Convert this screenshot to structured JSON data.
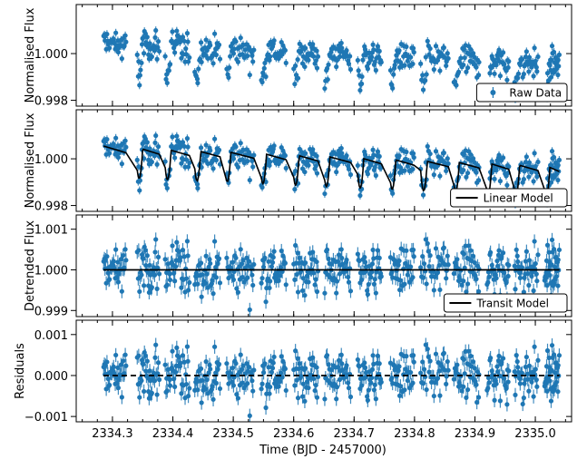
{
  "figure": {
    "xlabel": "Time (BJD - 2457000)"
  },
  "colors": {
    "points": "#1f77b4",
    "model": "#000000",
    "legend_border": "#000000"
  },
  "chart_data": [
    {
      "type": "scatter",
      "panel": "raw",
      "ylabel": "Normalised Flux",
      "xlim": [
        2334.24,
        2335.06
      ],
      "ylim": [
        0.99775,
        1.0021
      ],
      "yticks": [
        0.998,
        1.0
      ],
      "ytick_labels": [
        "0.998",
        "1.000"
      ],
      "legend": {
        "label": "Raw Data",
        "placement": "lower-right",
        "marker": "errorbar-point"
      },
      "series": [
        {
          "name": "Raw Data",
          "style": "errorbar-points"
        }
      ]
    },
    {
      "type": "line",
      "panel": "linear",
      "ylabel": "Normalised Flux",
      "xlim": [
        2334.24,
        2335.06
      ],
      "ylim": [
        0.99775,
        1.0021
      ],
      "yticks": [
        0.998,
        1.0
      ],
      "ytick_labels": [
        "0.998",
        "1.000"
      ],
      "legend": {
        "label": "Linear Model",
        "placement": "lower-right",
        "marker": "line"
      },
      "series": [
        {
          "name": "Linear Model",
          "style": "line"
        }
      ]
    },
    {
      "type": "line",
      "panel": "transit",
      "ylabel": "Detrended Flux",
      "xlim": [
        2334.24,
        2335.06
      ],
      "ylim": [
        0.99885,
        1.00135
      ],
      "yticks": [
        0.999,
        1.0,
        1.001
      ],
      "ytick_labels": [
        "0.999",
        "1.000",
        "1.001"
      ],
      "legend": {
        "label": "Transit Model",
        "placement": "lower-right",
        "marker": "line"
      },
      "series": [
        {
          "name": "Transit Model",
          "style": "line",
          "x": [
            2334.285,
            2335.04
          ],
          "y": [
            1.0,
            1.0
          ]
        }
      ]
    },
    {
      "type": "scatter",
      "panel": "residuals",
      "ylabel": "Residuals",
      "xlim": [
        2334.24,
        2335.06
      ],
      "ylim": [
        -0.00113,
        0.00135
      ],
      "yticks": [
        -0.001,
        0.0,
        0.001
      ],
      "ytick_labels": [
        "−0.001",
        "0.000",
        "0.001"
      ],
      "zero_line": {
        "y": 0.0,
        "style": "dashed"
      },
      "xticks": [
        2334.3,
        2334.4,
        2334.5,
        2334.6,
        2334.7,
        2334.8,
        2334.9,
        2335.0
      ],
      "xtick_labels": [
        "2334.3",
        "2334.4",
        "2334.5",
        "2334.6",
        "2334.7",
        "2334.8",
        "2334.9",
        "2335.0"
      ]
    }
  ],
  "light_curve": {
    "segment_starts": [
      2334.285,
      2334.341,
      2334.387,
      2334.436,
      2334.489,
      2334.546,
      2334.6,
      2334.651,
      2334.706,
      2334.76,
      2334.81,
      2334.865,
      2334.92,
      2334.965,
      2335.015
    ],
    "segment_ends": [
      2334.323,
      2334.378,
      2334.428,
      2334.479,
      2334.535,
      2334.588,
      2334.641,
      2334.695,
      2334.746,
      2334.8,
      2334.857,
      2334.908,
      2334.957,
      2335.005,
      2335.04
    ],
    "transit_times": [
      2334.344,
      2334.391,
      2334.44,
      2334.49,
      2334.549,
      2334.603,
      2334.654,
      2334.71,
      2334.763,
      2334.815,
      2334.868,
      2334.922,
      2334.968,
      2335.018
    ],
    "trend_start": 1.00055,
    "trend_slope_per_day": -0.00112,
    "segment_ramp": 0.00042,
    "transit_depth": 0.0013,
    "scatter_sigma": 0.00032,
    "error_bar": 0.00017,
    "points_per_segment": 34
  }
}
